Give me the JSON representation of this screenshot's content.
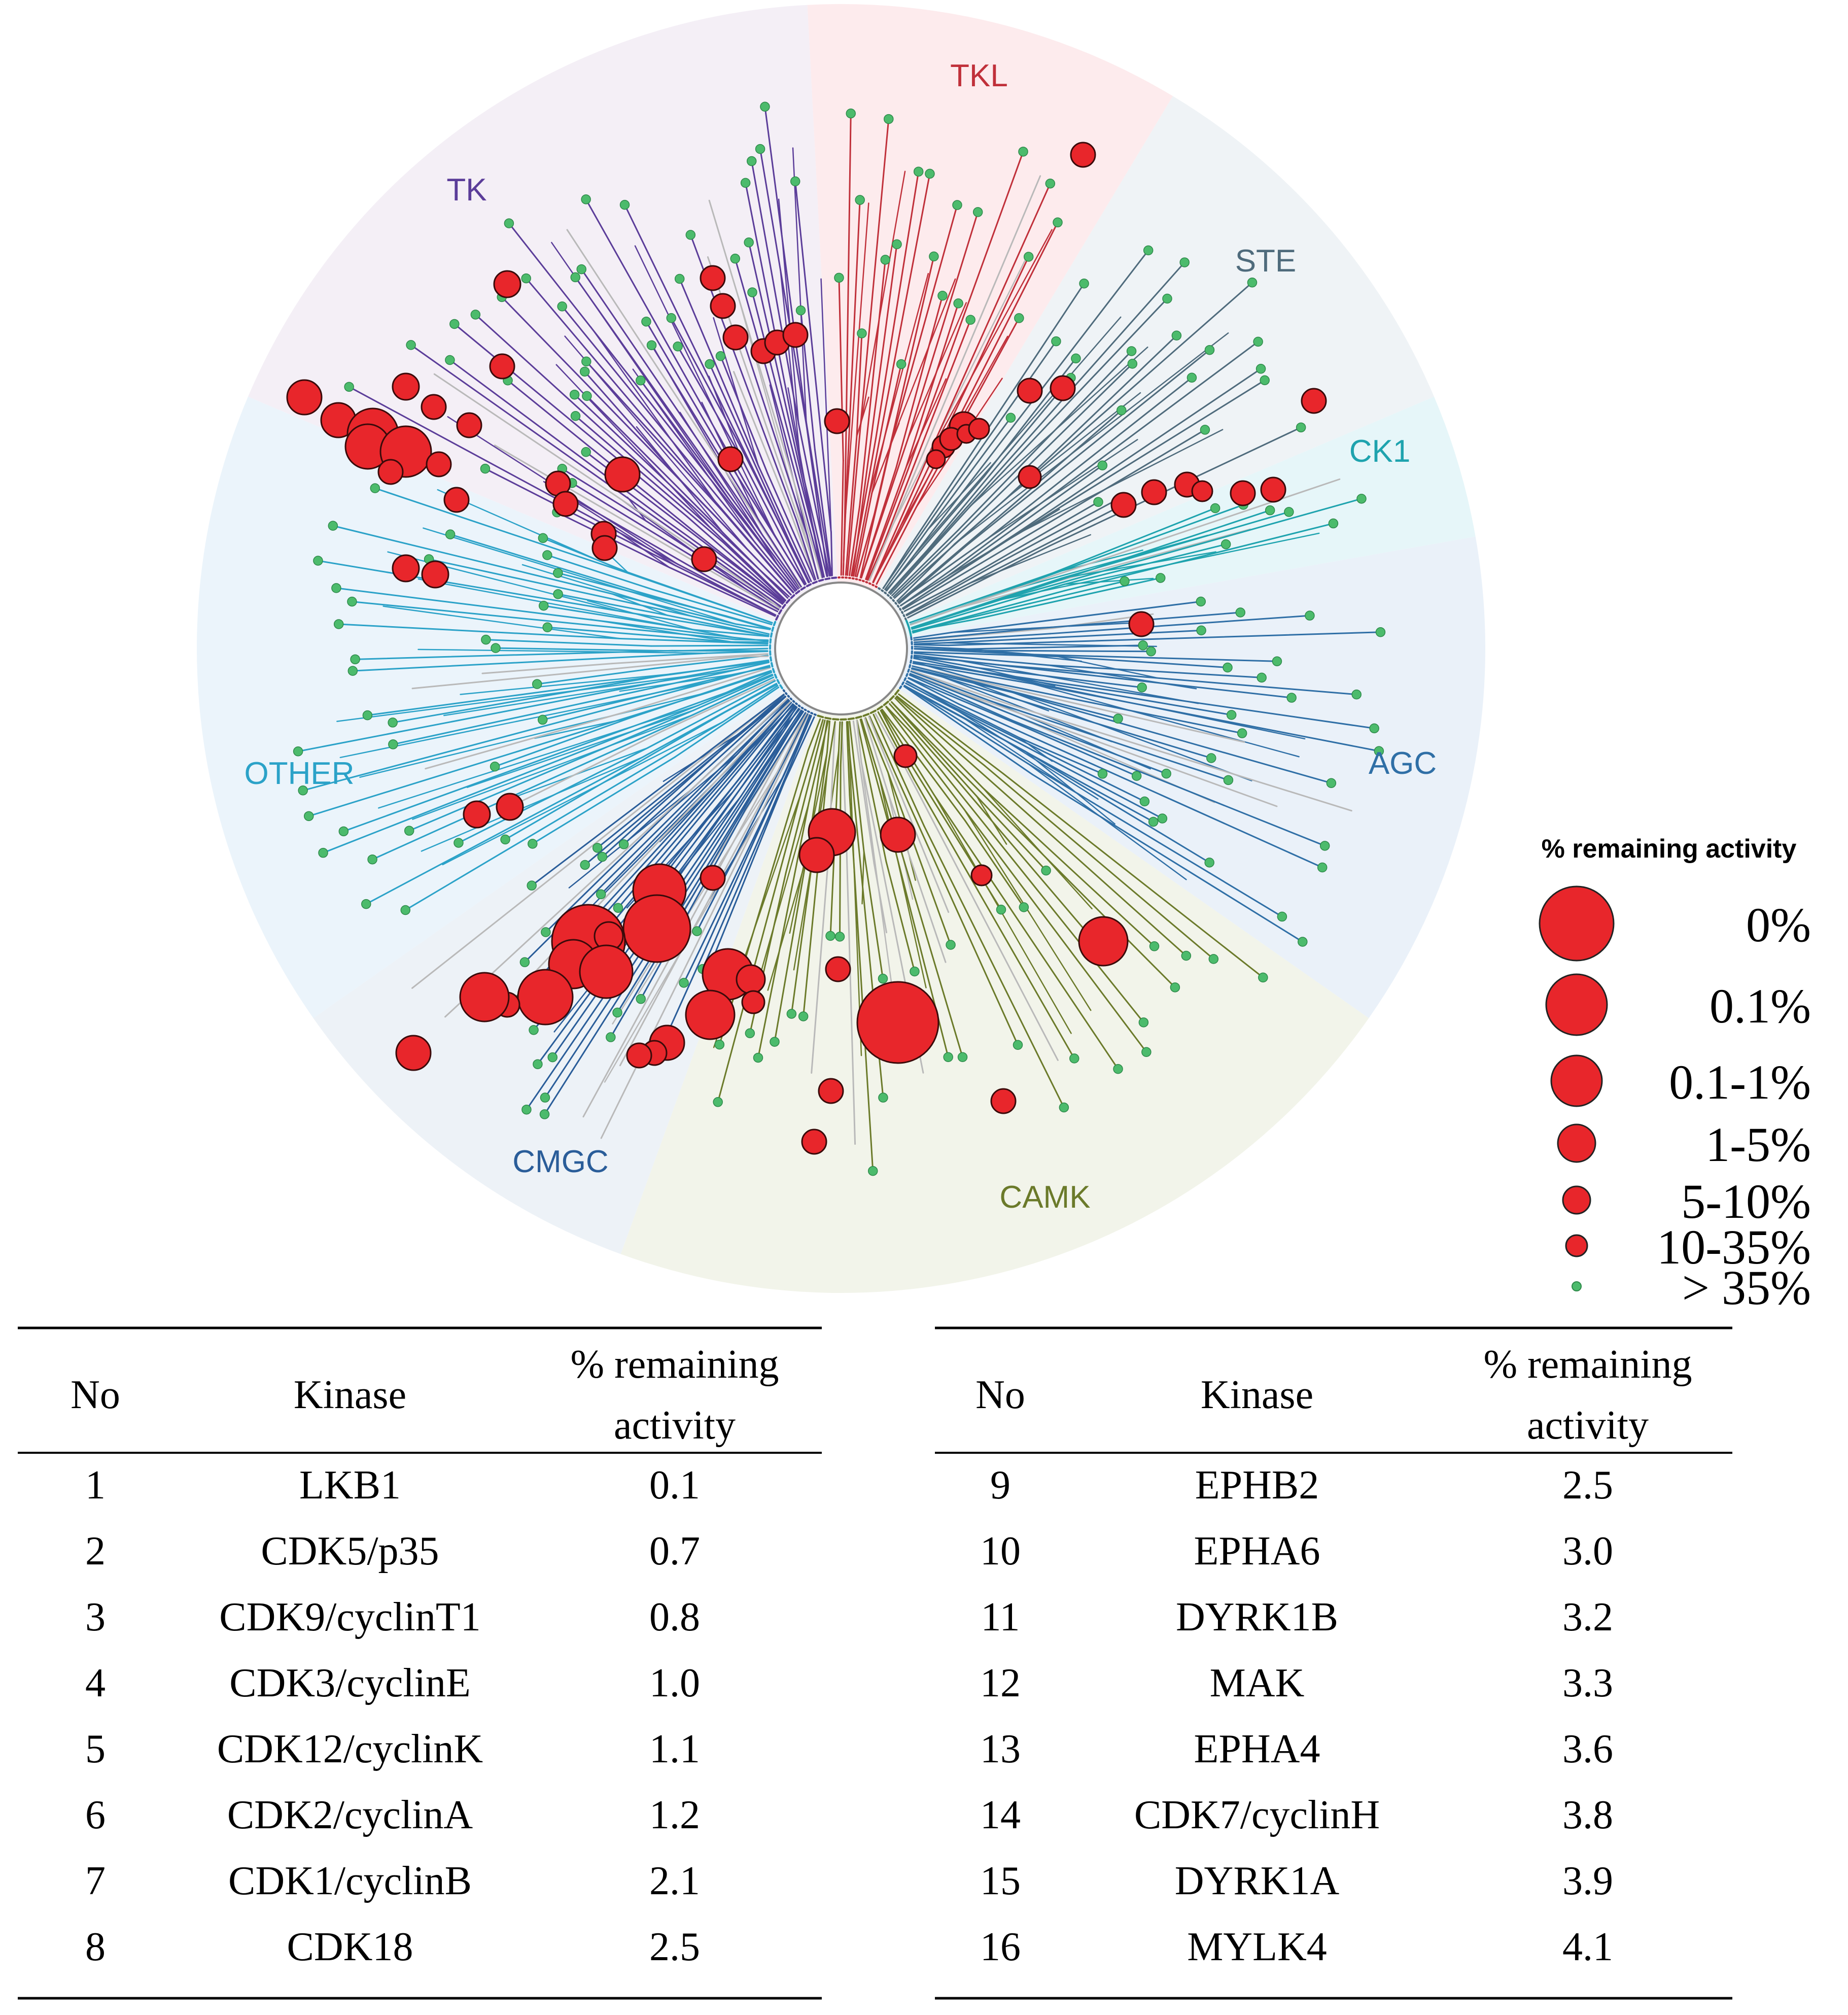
{
  "tree": {
    "families": [
      {
        "name": "TKL",
        "color": "#c0303a",
        "bg": "#fde8ea"
      },
      {
        "name": "STE",
        "color": "#4f6b7c",
        "bg": "#ecf1f4"
      },
      {
        "name": "CK1",
        "color": "#1ea3ae",
        "bg": "#e2f5f8"
      },
      {
        "name": "AGC",
        "color": "#2f6fa6",
        "bg": "#e6eff8"
      },
      {
        "name": "CAMK",
        "color": "#6b7a2a",
        "bg": "#f0f2e6"
      },
      {
        "name": "CMGC",
        "color": "#2a5d99",
        "bg": "#eaf0f6"
      },
      {
        "name": "OTHER",
        "color": "#2ba2c8",
        "bg": "#e8f2fa"
      },
      {
        "name": "TK",
        "color": "#5b3d99",
        "bg": "#f2ecf4"
      }
    ],
    "hit_color": "#e8262b",
    "nonhit_color": "#4cbb6c",
    "grey_branch_color": "#b9b9b9"
  },
  "legend": {
    "title": "% remaining activity",
    "items": [
      {
        "label": "0%"
      },
      {
        "label": "0.1%"
      },
      {
        "label": "0.1-1%"
      },
      {
        "label": "1-5%"
      },
      {
        "label": "5-10%"
      },
      {
        "label": "10-35%"
      },
      {
        "label": "> 35%"
      }
    ]
  },
  "tables": [
    {
      "headers": {
        "no": "No",
        "kinase": "Kinase",
        "activity_line1": "% remaining",
        "activity_line2": "activity"
      },
      "rows": [
        {
          "no": "1",
          "kinase": "LKB1",
          "activity": "0.1"
        },
        {
          "no": "2",
          "kinase": "CDK5/p35",
          "activity": "0.7"
        },
        {
          "no": "3",
          "kinase": "CDK9/cyclinT1",
          "activity": "0.8"
        },
        {
          "no": "4",
          "kinase": "CDK3/cyclinE",
          "activity": "1.0"
        },
        {
          "no": "5",
          "kinase": "CDK12/cyclinK",
          "activity": "1.1"
        },
        {
          "no": "6",
          "kinase": "CDK2/cyclinA",
          "activity": "1.2"
        },
        {
          "no": "7",
          "kinase": "CDK1/cyclinB",
          "activity": "2.1"
        },
        {
          "no": "8",
          "kinase": "CDK18",
          "activity": "2.5"
        }
      ]
    },
    {
      "headers": {
        "no": "No",
        "kinase": "Kinase",
        "activity_line1": "% remaining",
        "activity_line2": "activity"
      },
      "rows": [
        {
          "no": "9",
          "kinase": "EPHB2",
          "activity": "2.5"
        },
        {
          "no": "10",
          "kinase": "EPHA6",
          "activity": "3.0"
        },
        {
          "no": "11",
          "kinase": "DYRK1B",
          "activity": "3.2"
        },
        {
          "no": "12",
          "kinase": "MAK",
          "activity": "3.3"
        },
        {
          "no": "13",
          "kinase": "EPHA4",
          "activity": "3.6"
        },
        {
          "no": "14",
          "kinase": "CDK7/cyclinH",
          "activity": "3.8"
        },
        {
          "no": "15",
          "kinase": "DYRK1A",
          "activity": "3.9"
        },
        {
          "no": "16",
          "kinase": "MYLK4",
          "activity": "4.1"
        }
      ]
    }
  ]
}
